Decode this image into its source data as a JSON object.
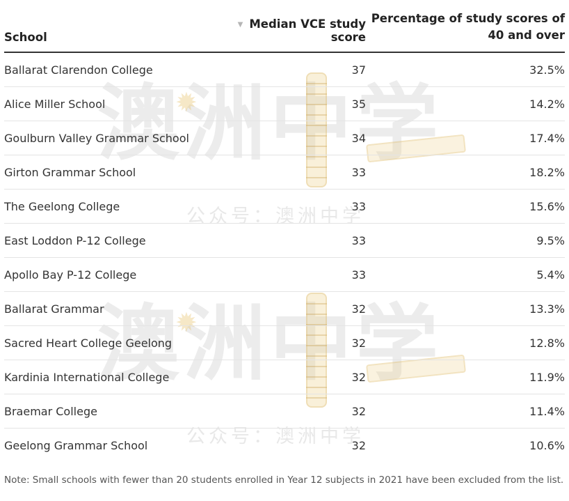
{
  "table": {
    "headers": {
      "school": "School",
      "median": "Median VCE study score",
      "percentage_line1": "Percentage of study scores of",
      "percentage_line2": "40 and over"
    },
    "sort_icon": "sort-down-triangle",
    "rows": [
      {
        "school": "Ballarat Clarendon College",
        "median": "37",
        "percentage": "32.5%"
      },
      {
        "school": "Alice Miller School",
        "median": "35",
        "percentage": "14.2%"
      },
      {
        "school": "Goulburn Valley Grammar School",
        "median": "34",
        "percentage": "17.4%"
      },
      {
        "school": "Girton Grammar School",
        "median": "33",
        "percentage": "18.2%"
      },
      {
        "school": "The Geelong College",
        "median": "33",
        "percentage": "15.6%"
      },
      {
        "school": "East Loddon P-12 College",
        "median": "33",
        "percentage": "9.5%"
      },
      {
        "school": "Apollo Bay P-12 College",
        "median": "33",
        "percentage": "5.4%"
      },
      {
        "school": "Ballarat Grammar",
        "median": "32",
        "percentage": "13.3%"
      },
      {
        "school": "Sacred Heart College Geelong",
        "median": "32",
        "percentage": "12.8%"
      },
      {
        "school": "Kardinia International College",
        "median": "32",
        "percentage": "11.9%"
      },
      {
        "school": "Braemar College",
        "median": "32",
        "percentage": "11.4%"
      },
      {
        "school": "Geelong Grammar School",
        "median": "32",
        "percentage": "10.6%"
      }
    ]
  },
  "note": "Note: Small schools with fewer than 20 students enrolled in Year 12 subjects in 2021 have been excluded from the list.",
  "watermark": {
    "big_text": "澳洲中学",
    "small_text": "公众号：澳洲中学"
  }
}
